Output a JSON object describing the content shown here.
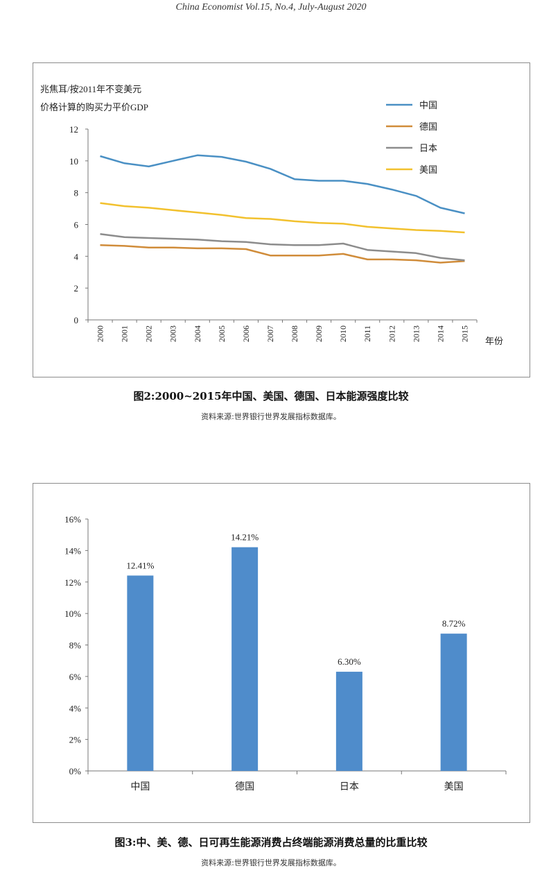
{
  "header": "China Economist Vol.15, No.4, July-August 2020",
  "figure2": {
    "caption": "图2:2000~2015年中国、美国、德国、日本能源强度比较",
    "source": "资料来源:世界银行世界发展指标数据库。"
  },
  "figure3": {
    "caption": "图3:中、美、德、日可再生能源消费占终端能源消费总量的比重比较",
    "source": "资料来源:世界银行世界发展指标数据库。"
  },
  "chart_data": [
    {
      "type": "line",
      "ylabel_line1": "兆焦耳/按2011年不变美元",
      "ylabel_line2": "价格计算的购买力平价GDP",
      "xlabel": "年份",
      "x": [
        "2000",
        "2001",
        "2002",
        "2003",
        "2004",
        "2005",
        "2006",
        "2007",
        "2008",
        "2009",
        "2010",
        "2011",
        "2012",
        "2013",
        "2014",
        "2015"
      ],
      "ylim": [
        0,
        12
      ],
      "yticks": [
        "0",
        "2",
        "4",
        "6",
        "8",
        "10",
        "12"
      ],
      "grid": false,
      "legend_position": "top-right",
      "series": [
        {
          "name": "中国",
          "color": "#4a90c4",
          "values": [
            10.3,
            9.85,
            9.65,
            10.0,
            10.35,
            10.25,
            9.95,
            9.5,
            8.85,
            8.75,
            8.75,
            8.55,
            8.2,
            7.8,
            7.05,
            6.7
          ]
        },
        {
          "name": "德国",
          "color": "#d08c3a",
          "values": [
            4.7,
            4.65,
            4.55,
            4.55,
            4.5,
            4.5,
            4.45,
            4.05,
            4.05,
            4.05,
            4.15,
            3.8,
            3.8,
            3.75,
            3.6,
            3.7
          ]
        },
        {
          "name": "日本",
          "color": "#8c8c8c",
          "values": [
            5.4,
            5.2,
            5.15,
            5.1,
            5.05,
            4.95,
            4.9,
            4.75,
            4.7,
            4.7,
            4.8,
            4.4,
            4.3,
            4.2,
            3.9,
            3.75
          ]
        },
        {
          "name": "美国",
          "color": "#f2c12e",
          "values": [
            7.35,
            7.15,
            7.05,
            6.9,
            6.75,
            6.6,
            6.4,
            6.35,
            6.2,
            6.1,
            6.05,
            5.85,
            5.75,
            5.65,
            5.6,
            5.5
          ]
        }
      ]
    },
    {
      "type": "bar",
      "categories": [
        "中国",
        "德国",
        "日本",
        "美国"
      ],
      "values": [
        12.41,
        14.21,
        6.3,
        8.72
      ],
      "data_labels": [
        "12.41%",
        "14.21%",
        "6.30%",
        "8.72%"
      ],
      "ylim": [
        0,
        16
      ],
      "yticks": [
        "0%",
        "2%",
        "4%",
        "6%",
        "8%",
        "10%",
        "12%",
        "14%",
        "16%"
      ],
      "bar_color": "#4f8ccb",
      "grid": false
    }
  ]
}
